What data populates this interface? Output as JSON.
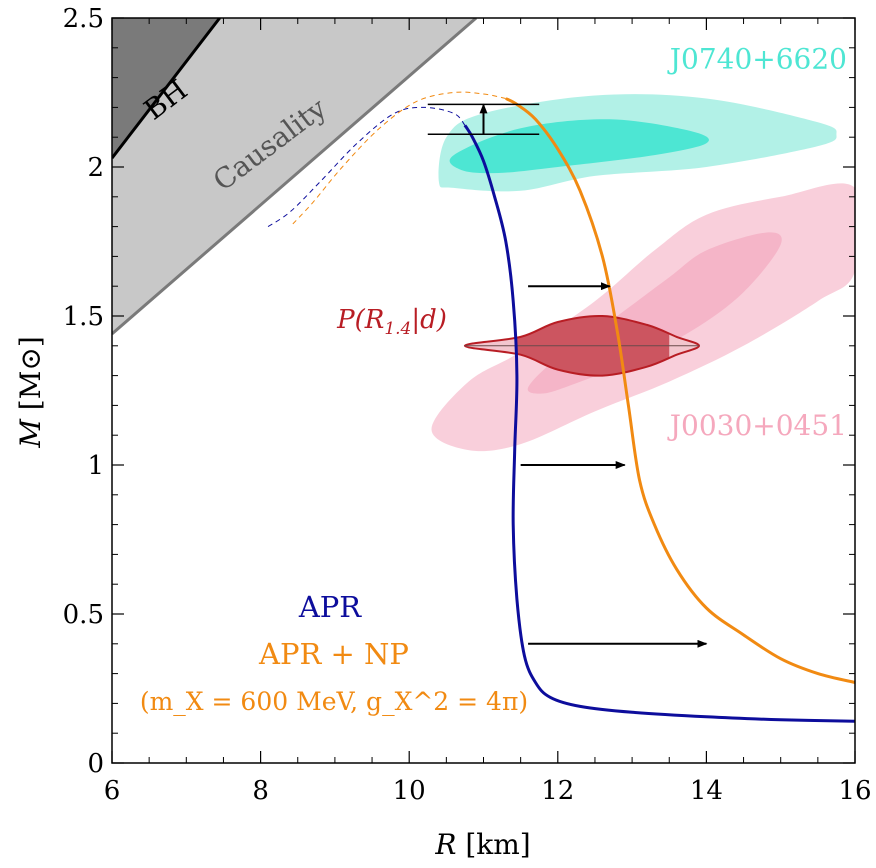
{
  "chart_data": {
    "type": "line",
    "xlabel_var": "R",
    "xlabel_unit": "[km]",
    "ylabel_var": "M",
    "ylabel_unit": "[M⊙]",
    "xlim": [
      6,
      16
    ],
    "ylim": [
      0,
      2.5
    ],
    "xticks": [
      6,
      8,
      10,
      12,
      14,
      16
    ],
    "yticks": [
      0,
      0.5,
      1,
      1.5,
      2,
      2.5
    ],
    "xtick_labels": [
      "6",
      "8",
      "10",
      "12",
      "14",
      "16"
    ],
    "ytick_labels": [
      "0",
      "0.5",
      "1",
      "1.5",
      "2",
      "2.5"
    ],
    "grid": false,
    "series": [
      {
        "name": "APR",
        "color": "#0d0d9c",
        "points": [
          [
            16.0,
            0.14
          ],
          [
            15.0,
            0.145
          ],
          [
            14.0,
            0.155
          ],
          [
            13.0,
            0.17
          ],
          [
            12.3,
            0.19
          ],
          [
            11.9,
            0.22
          ],
          [
            11.7,
            0.27
          ],
          [
            11.55,
            0.36
          ],
          [
            11.45,
            0.55
          ],
          [
            11.4,
            0.8
          ],
          [
            11.42,
            1.05
          ],
          [
            11.45,
            1.3
          ],
          [
            11.4,
            1.55
          ],
          [
            11.3,
            1.75
          ],
          [
            11.15,
            1.9
          ],
          [
            11.0,
            2.02
          ],
          [
            10.85,
            2.1
          ],
          [
            10.75,
            2.14
          ]
        ]
      },
      {
        "name": "APR + NP",
        "color": "#f18a12",
        "points": [
          [
            16.0,
            0.27
          ],
          [
            15.5,
            0.3
          ],
          [
            15.0,
            0.35
          ],
          [
            14.5,
            0.43
          ],
          [
            14.0,
            0.52
          ],
          [
            13.6,
            0.65
          ],
          [
            13.3,
            0.8
          ],
          [
            13.1,
            0.95
          ],
          [
            12.95,
            1.2
          ],
          [
            12.8,
            1.45
          ],
          [
            12.6,
            1.7
          ],
          [
            12.3,
            1.92
          ],
          [
            12.0,
            2.06
          ],
          [
            11.7,
            2.16
          ],
          [
            11.45,
            2.21
          ],
          [
            11.3,
            2.23
          ]
        ]
      }
    ],
    "unstable_branches": [
      {
        "color": "#0d0d9c",
        "points": [
          [
            10.75,
            2.14
          ],
          [
            10.6,
            2.18
          ],
          [
            10.2,
            2.2
          ],
          [
            9.8,
            2.18
          ],
          [
            9.3,
            2.08
          ],
          [
            8.8,
            1.95
          ],
          [
            8.4,
            1.85
          ],
          [
            8.1,
            1.8
          ]
        ]
      },
      {
        "color": "#f18a12",
        "points": [
          [
            11.3,
            2.23
          ],
          [
            11.0,
            2.245
          ],
          [
            10.6,
            2.25
          ],
          [
            10.1,
            2.22
          ],
          [
            9.6,
            2.13
          ],
          [
            9.1,
            2.0
          ],
          [
            8.7,
            1.88
          ],
          [
            8.4,
            1.8
          ]
        ]
      }
    ],
    "regions": [
      {
        "name": "BH",
        "color": "#7a7a7a",
        "points": [
          [
            6,
            2.5
          ],
          [
            7.45,
            2.5
          ],
          [
            6,
            2.03
          ]
        ]
      },
      {
        "name": "Causality",
        "color": "#c8c8c8",
        "points": [
          [
            7.45,
            2.5
          ],
          [
            10.9,
            2.5
          ],
          [
            6,
            1.44
          ],
          [
            6,
            2.03
          ]
        ]
      }
    ],
    "region_boundaries": [
      {
        "color": "#000000",
        "points": [
          [
            6,
            2.03
          ],
          [
            7.45,
            2.5
          ]
        ]
      },
      {
        "color": "#7a7a7a",
        "points": [
          [
            6,
            1.44
          ],
          [
            10.9,
            2.5
          ]
        ]
      }
    ],
    "contours": [
      {
        "name": "J0740+6620 outer",
        "color": "#b2f1e7",
        "points": [
          [
            10.4,
            1.95
          ],
          [
            10.5,
            2.1
          ],
          [
            11.0,
            2.18
          ],
          [
            12.5,
            2.24
          ],
          [
            14.0,
            2.23
          ],
          [
            15.5,
            2.15
          ],
          [
            15.75,
            2.11
          ],
          [
            15.5,
            2.07
          ],
          [
            14.0,
            2.0
          ],
          [
            12.5,
            1.97
          ],
          [
            11.5,
            1.92
          ],
          [
            10.6,
            1.93
          ]
        ]
      },
      {
        "name": "J0740+6620 inner",
        "color": "#4de6d3",
        "points": [
          [
            10.6,
            2.04
          ],
          [
            11.5,
            2.13
          ],
          [
            12.7,
            2.16
          ],
          [
            13.8,
            2.12
          ],
          [
            14.0,
            2.08
          ],
          [
            13.3,
            2.04
          ],
          [
            12.0,
            2.0
          ],
          [
            11.2,
            1.98
          ],
          [
            10.7,
            1.99
          ]
        ]
      },
      {
        "name": "J0030+0451 outer",
        "color": "#f9cfdb",
        "points": [
          [
            10.3,
            1.12
          ],
          [
            10.8,
            1.28
          ],
          [
            11.5,
            1.38
          ],
          [
            12.5,
            1.55
          ],
          [
            13.3,
            1.72
          ],
          [
            14.0,
            1.84
          ],
          [
            15.0,
            1.9
          ],
          [
            16.0,
            1.93
          ],
          [
            16.0,
            1.65
          ],
          [
            15.5,
            1.55
          ],
          [
            14.5,
            1.4
          ],
          [
            13.5,
            1.28
          ],
          [
            12.5,
            1.18
          ],
          [
            11.5,
            1.07
          ],
          [
            10.8,
            1.05
          ]
        ]
      },
      {
        "name": "J0030+0451 inner",
        "color": "#f5b5c8",
        "points": [
          [
            11.6,
            1.26
          ],
          [
            12.0,
            1.36
          ],
          [
            12.8,
            1.5
          ],
          [
            13.5,
            1.63
          ],
          [
            14.0,
            1.72
          ],
          [
            14.8,
            1.78
          ],
          [
            15.0,
            1.74
          ],
          [
            14.5,
            1.58
          ],
          [
            13.8,
            1.45
          ],
          [
            13.0,
            1.35
          ],
          [
            12.2,
            1.27
          ],
          [
            11.8,
            1.24
          ]
        ]
      }
    ],
    "violin": {
      "label": "P(R",
      "label_sub": "1.4",
      "label_tail": "|d)",
      "color": "#b81d24",
      "fill": "#cc5560",
      "light_fill": "#f3c6ce",
      "center_mass": 1.4,
      "points": [
        [
          10.75,
          0.0
        ],
        [
          11.5,
          0.03
        ],
        [
          12.0,
          0.08
        ],
        [
          12.6,
          0.1
        ],
        [
          13.2,
          0.07
        ],
        [
          13.6,
          0.03
        ],
        [
          13.9,
          0.0
        ]
      ],
      "credible_interval": [
        11.45,
        13.5
      ]
    },
    "arrows": [
      {
        "from": [
          10.25,
          2.21
        ],
        "to": [
          11.75,
          2.21
        ],
        "type": "bar"
      },
      {
        "from": [
          10.25,
          2.11
        ],
        "to": [
          11.75,
          2.11
        ],
        "type": "bar"
      },
      {
        "from": [
          11.0,
          2.11
        ],
        "to": [
          11.0,
          2.21
        ],
        "type": "arrow"
      },
      {
        "from": [
          11.6,
          1.6
        ],
        "to": [
          12.7,
          1.6
        ],
        "type": "arrow"
      },
      {
        "from": [
          11.5,
          1.0
        ],
        "to": [
          12.9,
          1.0
        ],
        "type": "arrow"
      },
      {
        "from": [
          11.6,
          0.4
        ],
        "to": [
          14.0,
          0.4
        ],
        "type": "arrow"
      }
    ],
    "annotations": [
      {
        "text": "BH",
        "x": 6.8,
        "y": 2.2,
        "color": "#000000",
        "rotate": -37
      },
      {
        "text": "Causality",
        "x": 8.2,
        "y": 2.05,
        "color": "#555555",
        "rotate": -37
      },
      {
        "text": "J0740+6620",
        "x": 14.7,
        "y": 2.33,
        "color": "#4ee6d3",
        "rotate": 0
      },
      {
        "text": "J0030+0451",
        "x": 14.7,
        "y": 1.1,
        "color": "#f5a8bd",
        "rotate": 0
      }
    ],
    "legend": {
      "apr": "APR",
      "apr_np": "APR + NP",
      "param_line": "(m_X = 600 MeV, g_X^2 = 4π)"
    }
  }
}
